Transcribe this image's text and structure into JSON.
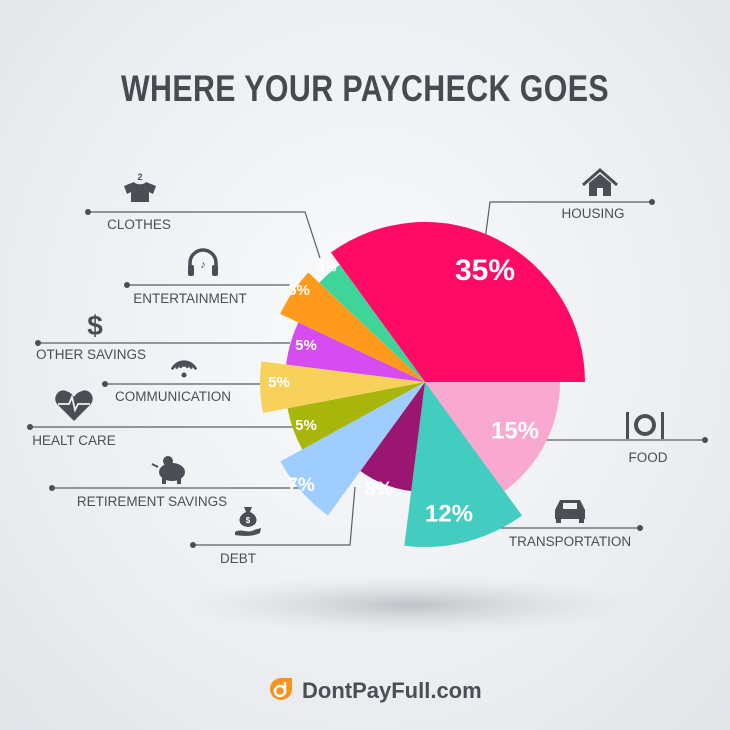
{
  "chart_data": {
    "type": "pie",
    "title": "WHERE YOUR PAYCHECK GOES",
    "slices": [
      {
        "label": "HOUSING",
        "value": 35,
        "value_label": "35%",
        "color": "#ff0a64",
        "icon": "house-icon"
      },
      {
        "label": "FOOD",
        "value": 15,
        "value_label": "15%",
        "color": "#f9a8cf",
        "icon": "plate-cutlery-icon"
      },
      {
        "label": "TRANSPORTATION",
        "value": 12,
        "value_label": "12%",
        "color": "#43ccc0",
        "icon": "car-icon"
      },
      {
        "label": "DEBT",
        "value": 8,
        "value_label": "8%",
        "color": "#9b1670",
        "icon": "money-bag-hand-icon"
      },
      {
        "label": "RETIREMENT SAVINGS",
        "value": 7,
        "value_label": "7%",
        "color": "#9fcdff",
        "icon": "piggy-bank-icon"
      },
      {
        "label": "HEALT CARE",
        "value": 5,
        "value_label": "5%",
        "color": "#a8b50a",
        "icon": "heart-pulse-icon"
      },
      {
        "label": "COMMUNICATION",
        "value": 5,
        "value_label": "5%",
        "color": "#f8d15a",
        "icon": "wifi-icon"
      },
      {
        "label": "OTHER SAVINGS",
        "value": 5,
        "value_label": "5%",
        "color": "#d64cf0",
        "icon": "dollar-icon"
      },
      {
        "label": "ENTERTAINMENT",
        "value": 5,
        "value_label": "5%",
        "color": "#ff9a1d",
        "icon": "headphones-icon"
      },
      {
        "label": "CLOTHES",
        "value": 3,
        "value_label": "3%",
        "color": "#3ed49a",
        "icon": "shirt-icon"
      }
    ]
  },
  "brand": {
    "name": "DontPayFull.com",
    "color": "#f7931e"
  }
}
